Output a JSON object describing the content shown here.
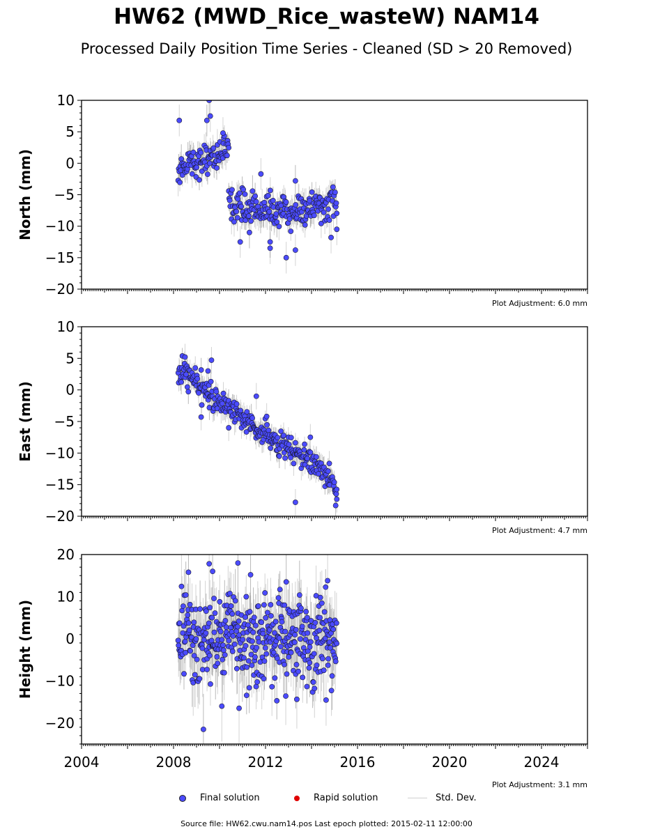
{
  "title": "HW62 (MWD_Rice_wasteW) NAM14",
  "subtitle": "Processed Daily Position Time Series - Cleaned (SD > 20 Removed)",
  "source_text": "Source file: HW62.cwu.nam14.pos  Last epoch plotted: 2015-02-11 12:00:00",
  "legend": {
    "final": "Final solution",
    "rapid": "Rapid solution",
    "std": "Std. Dev."
  },
  "colors": {
    "final": "#4b4bff",
    "rapid": "#e00000",
    "std": "#c8c8c8"
  },
  "chart_data": [
    {
      "type": "scatter",
      "ylabel": "North (mm)",
      "xlim": [
        2004,
        2026
      ],
      "ylim": [
        -20,
        10
      ],
      "yticks": [
        -20,
        -15,
        -10,
        -5,
        0,
        5,
        10
      ],
      "adjustment": "Plot Adjustment: 6.0 mm",
      "series": [
        {
          "x": [
            2008.2,
            2008.6,
            2009.0,
            2009.5,
            2010.0,
            2010.4
          ],
          "y": [
            -1.5,
            0.5,
            0.0,
            1.0,
            1.5,
            2.0
          ]
        },
        {
          "x": [
            2010.4,
            2011.0,
            2011.5,
            2012.0,
            2012.5,
            2013.0,
            2013.5,
            2014.0,
            2014.5,
            2015.1
          ],
          "y": [
            -6.0,
            -7.0,
            -7.0,
            -7.5,
            -7.5,
            -8.0,
            -7.5,
            -7.0,
            -7.0,
            -6.0
          ]
        }
      ],
      "outliers": [
        {
          "x": 2008.25,
          "y": 6.8
        },
        {
          "x": 2009.45,
          "y": 6.8
        },
        {
          "x": 2009.55,
          "y": 10.0
        },
        {
          "x": 2009.6,
          "y": 7.5
        },
        {
          "x": 2010.15,
          "y": 4.8
        },
        {
          "x": 2010.9,
          "y": -12.5
        },
        {
          "x": 2011.3,
          "y": -11.0
        },
        {
          "x": 2011.8,
          "y": -1.7
        },
        {
          "x": 2012.2,
          "y": -13.5
        },
        {
          "x": 2012.2,
          "y": -12.5
        },
        {
          "x": 2012.9,
          "y": -15.0
        },
        {
          "x": 2013.3,
          "y": -13.8
        },
        {
          "x": 2013.3,
          "y": -2.8
        },
        {
          "x": 2014.85,
          "y": -11.8
        },
        {
          "x": 2015.1,
          "y": -10.5
        }
      ]
    },
    {
      "type": "scatter",
      "ylabel": "East (mm)",
      "xlim": [
        2004,
        2026
      ],
      "ylim": [
        -20,
        10
      ],
      "yticks": [
        -20,
        -15,
        -10,
        -5,
        0,
        5,
        10
      ],
      "adjustment": "Plot Adjustment: 4.7 mm",
      "series": [
        {
          "x": [
            2008.2,
            2008.5,
            2009.0,
            2009.5,
            2010.0,
            2010.5,
            2011.0,
            2011.5,
            2012.0,
            2012.5,
            2013.0,
            2013.5,
            2014.0,
            2014.5,
            2015.1
          ],
          "y": [
            2.5,
            2.8,
            1.0,
            -0.5,
            -1.8,
            -3.0,
            -4.5,
            -6.0,
            -7.0,
            -8.5,
            -9.5,
            -10.5,
            -11.5,
            -13.0,
            -15.5
          ]
        }
      ],
      "outliers": [
        {
          "x": 2008.5,
          "y": 5.2
        },
        {
          "x": 2009.2,
          "y": -4.3
        },
        {
          "x": 2009.5,
          "y": 3.0
        },
        {
          "x": 2009.65,
          "y": 4.7
        },
        {
          "x": 2010.4,
          "y": -6.0
        },
        {
          "x": 2011.6,
          "y": -1.0
        },
        {
          "x": 2012.05,
          "y": -4.2
        },
        {
          "x": 2013.3,
          "y": -17.8
        },
        {
          "x": 2013.95,
          "y": -7.5
        },
        {
          "x": 2015.05,
          "y": -18.3
        },
        {
          "x": 2015.1,
          "y": -17.3
        }
      ]
    },
    {
      "type": "scatter",
      "ylabel": "Height (mm)",
      "xlabel": "",
      "xlim": [
        2004,
        2026
      ],
      "ylim": [
        -25,
        20
      ],
      "yticks": [
        -20,
        -10,
        0,
        10,
        20
      ],
      "xticks": [
        2004,
        2008,
        2012,
        2016,
        2020,
        2024
      ],
      "adjustment": "Plot Adjustment: 3.1 mm",
      "series": [
        {
          "x": [
            2008.2,
            2008.6,
            2009.0,
            2009.5,
            2010.0,
            2010.5,
            2011.0,
            2011.5,
            2012.0,
            2012.5,
            2013.0,
            2013.5,
            2014.0,
            2014.5,
            2015.1
          ],
          "y": [
            0,
            2,
            -3,
            1,
            -2,
            2,
            0,
            -1,
            0,
            1,
            -1,
            0,
            -2,
            1,
            -3
          ]
        }
      ],
      "outliers": [
        {
          "x": 2009.3,
          "y": -21.5
        },
        {
          "x": 2009.55,
          "y": 17.8
        },
        {
          "x": 2009.7,
          "y": 16.0
        },
        {
          "x": 2010.8,
          "y": 18.0
        },
        {
          "x": 2011.35,
          "y": 15.2
        },
        {
          "x": 2008.65,
          "y": 15.8
        },
        {
          "x": 2010.1,
          "y": -16.0
        },
        {
          "x": 2010.85,
          "y": -16.5
        },
        {
          "x": 2012.9,
          "y": 13.5
        },
        {
          "x": 2014.7,
          "y": 13.8
        }
      ]
    }
  ]
}
